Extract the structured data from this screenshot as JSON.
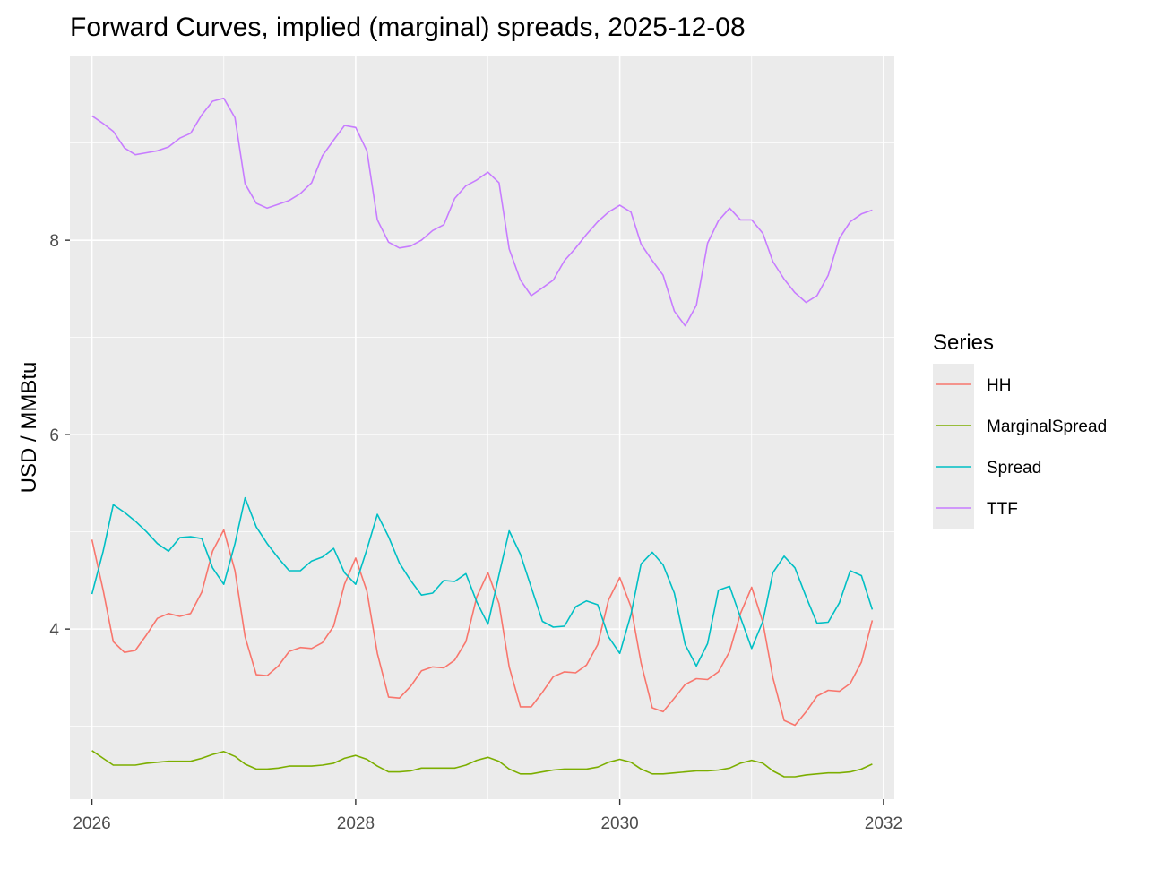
{
  "chart_data": {
    "type": "line",
    "title": "Forward Curves, implied (marginal) spreads, 2025-12-08",
    "xlabel": "",
    "ylabel": "USD / MMBtu",
    "x_ticks": [
      "2026",
      "2028",
      "2030",
      "2032"
    ],
    "y_ticks": [
      "4",
      "6",
      "8"
    ],
    "xlim": [
      "2025-11-01",
      "2032-01-31"
    ],
    "ylim": [
      2.25,
      9.9
    ],
    "grid": true,
    "legend": {
      "title": "Series",
      "position": "right"
    },
    "x": [
      "2026-01",
      "2026-02",
      "2026-03",
      "2026-04",
      "2026-05",
      "2026-06",
      "2026-07",
      "2026-08",
      "2026-09",
      "2026-10",
      "2026-11",
      "2026-12",
      "2027-01",
      "2027-02",
      "2027-03",
      "2027-04",
      "2027-05",
      "2027-06",
      "2027-07",
      "2027-08",
      "2027-09",
      "2027-10",
      "2027-11",
      "2027-12",
      "2028-01",
      "2028-02",
      "2028-03",
      "2028-04",
      "2028-05",
      "2028-06",
      "2028-07",
      "2028-08",
      "2028-09",
      "2028-10",
      "2028-11",
      "2028-12",
      "2029-01",
      "2029-02",
      "2029-03",
      "2029-04",
      "2029-05",
      "2029-06",
      "2029-07",
      "2029-08",
      "2029-09",
      "2029-10",
      "2029-11",
      "2029-12",
      "2030-01",
      "2030-02",
      "2030-03",
      "2030-04",
      "2030-05",
      "2030-06",
      "2030-07",
      "2030-08",
      "2030-09",
      "2030-10",
      "2030-11",
      "2030-12",
      "2031-01",
      "2031-02",
      "2031-03",
      "2031-04",
      "2031-05",
      "2031-06",
      "2031-07",
      "2031-08",
      "2031-09",
      "2031-10",
      "2031-11",
      "2031-12"
    ],
    "series": [
      {
        "name": "HH",
        "color": "#F8766D",
        "values": [
          4.92,
          4.4,
          3.87,
          3.76,
          3.78,
          3.94,
          4.11,
          4.16,
          4.13,
          4.16,
          4.38,
          4.8,
          5.02,
          4.6,
          3.92,
          3.53,
          3.52,
          3.62,
          3.77,
          3.81,
          3.8,
          3.86,
          4.03,
          4.46,
          4.73,
          4.39,
          3.75,
          3.3,
          3.29,
          3.41,
          3.57,
          3.61,
          3.6,
          3.68,
          3.87,
          4.33,
          4.58,
          4.26,
          3.61,
          3.2,
          3.2,
          3.35,
          3.51,
          3.56,
          3.55,
          3.63,
          3.84,
          4.3,
          4.53,
          4.23,
          3.65,
          3.19,
          3.15,
          3.29,
          3.43,
          3.49,
          3.48,
          3.56,
          3.77,
          4.16,
          4.43,
          4.07,
          3.5,
          3.06,
          3.01,
          3.15,
          3.31,
          3.37,
          3.36,
          3.44,
          3.66,
          4.09
        ]
      },
      {
        "name": "MarginalSpread",
        "color": "#7CAE00",
        "values": [
          2.75,
          2.67,
          2.6,
          2.6,
          2.6,
          2.62,
          2.63,
          2.64,
          2.64,
          2.64,
          2.67,
          2.71,
          2.74,
          2.69,
          2.61,
          2.56,
          2.56,
          2.57,
          2.59,
          2.59,
          2.59,
          2.6,
          2.62,
          2.67,
          2.7,
          2.66,
          2.59,
          2.53,
          2.53,
          2.54,
          2.57,
          2.57,
          2.57,
          2.57,
          2.6,
          2.65,
          2.68,
          2.64,
          2.56,
          2.51,
          2.51,
          2.53,
          2.55,
          2.56,
          2.56,
          2.56,
          2.58,
          2.63,
          2.66,
          2.63,
          2.56,
          2.51,
          2.51,
          2.52,
          2.53,
          2.54,
          2.54,
          2.55,
          2.57,
          2.62,
          2.65,
          2.62,
          2.54,
          2.48,
          2.48,
          2.5,
          2.51,
          2.52,
          2.52,
          2.53,
          2.56,
          2.61
        ]
      },
      {
        "name": "Spread",
        "color": "#00BFC4",
        "values": [
          4.36,
          4.8,
          5.28,
          5.2,
          5.11,
          5.0,
          4.88,
          4.8,
          4.94,
          4.95,
          4.93,
          4.63,
          4.46,
          4.88,
          5.35,
          5.05,
          4.88,
          4.73,
          4.6,
          4.6,
          4.7,
          4.74,
          4.83,
          4.58,
          4.46,
          4.82,
          5.18,
          4.95,
          4.68,
          4.5,
          4.35,
          4.37,
          4.5,
          4.49,
          4.57,
          4.28,
          4.05,
          4.56,
          5.01,
          4.77,
          4.43,
          4.08,
          4.02,
          4.03,
          4.23,
          4.29,
          4.25,
          3.92,
          3.75,
          4.15,
          4.67,
          4.79,
          4.66,
          4.37,
          3.84,
          3.62,
          3.85,
          4.4,
          4.44,
          4.12,
          3.8,
          4.08,
          4.58,
          4.75,
          4.63,
          4.33,
          4.06,
          4.07,
          4.27,
          4.6,
          4.55,
          4.2
        ]
      },
      {
        "name": "TTF",
        "color": "#C77CFF",
        "values": [
          9.28,
          9.2,
          9.12,
          8.95,
          8.88,
          8.9,
          8.92,
          8.96,
          9.05,
          9.1,
          9.29,
          9.43,
          9.46,
          9.26,
          8.58,
          8.38,
          8.33,
          8.37,
          8.41,
          8.48,
          8.59,
          8.87,
          9.03,
          9.18,
          9.16,
          8.92,
          8.21,
          7.98,
          7.92,
          7.94,
          8.0,
          8.1,
          8.16,
          8.43,
          8.56,
          8.62,
          8.7,
          8.59,
          7.91,
          7.59,
          7.43,
          7.51,
          7.59,
          7.79,
          7.92,
          8.06,
          8.19,
          8.29,
          8.36,
          8.29,
          7.96,
          7.79,
          7.64,
          7.27,
          7.12,
          7.33,
          7.97,
          8.2,
          8.33,
          8.21,
          8.21,
          8.07,
          7.78,
          7.6,
          7.46,
          7.36,
          7.43,
          7.64,
          8.02,
          8.19,
          8.27,
          8.31
        ]
      }
    ]
  }
}
